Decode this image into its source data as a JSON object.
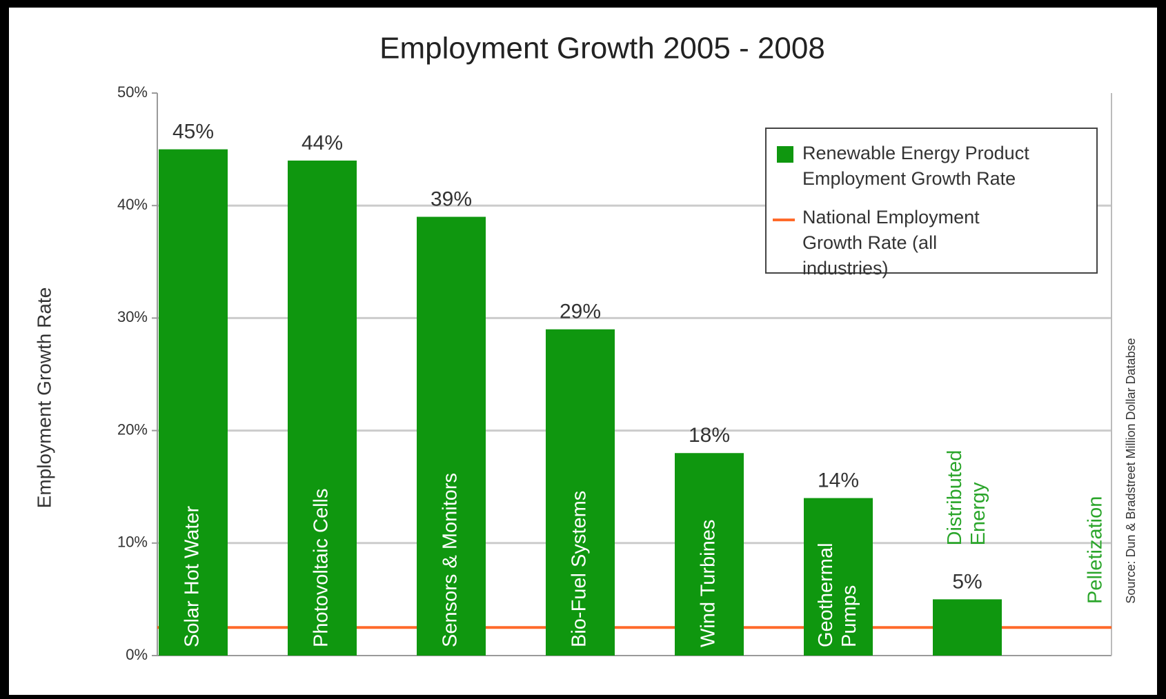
{
  "chart_data": {
    "type": "bar",
    "title": "Employment Growth 2005 - 2008",
    "y_label": "Employment Growth Rate",
    "source": "Source: Dun & Bradstreet Million Dollar Databse",
    "categories": [
      "Solar Hot Water",
      "Photovoltaic Cells",
      "Sensors & Monitors",
      "Bio-Fuel Systems",
      "Wind Turbines",
      "Geothermal Pumps",
      "Distributed Energy",
      "Pelletization"
    ],
    "series": [
      {
        "name": "Renewable Energy Product Employment Growth Rate",
        "color": "#0f970f",
        "values": [
          45,
          44,
          39,
          29,
          18,
          14,
          5,
          null
        ],
        "value_labels": [
          "45%",
          "44%",
          "39%",
          "29%",
          "18%",
          "14%",
          "5%",
          null
        ]
      }
    ],
    "reference_line": {
      "name": "National Employment Growth Rate (all industries)",
      "color": "#ff6a2a",
      "value": 2.5
    },
    "ylim": [
      0,
      50
    ],
    "yticks": [
      {
        "value": 0,
        "label": "0%"
      },
      {
        "value": 10,
        "label": "10%"
      },
      {
        "value": 20,
        "label": "20%"
      },
      {
        "value": 30,
        "label": "30%"
      },
      {
        "value": 40,
        "label": "40%"
      },
      {
        "value": 50,
        "label": "50%"
      }
    ],
    "grid": true,
    "legend": "upper right",
    "label_color": "#2aa52a"
  }
}
